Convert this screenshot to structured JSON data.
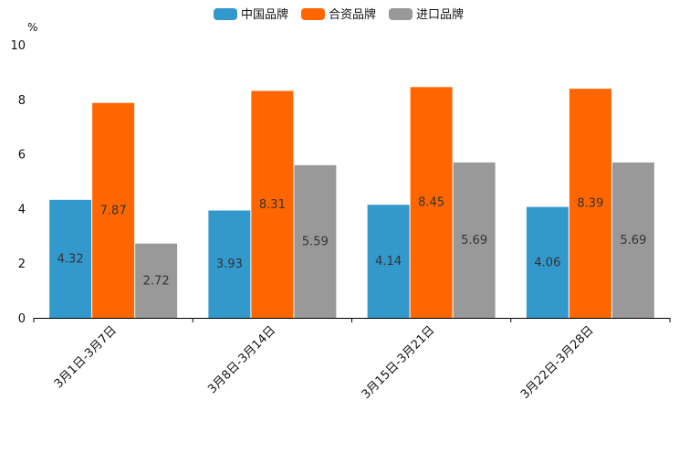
{
  "chart_data": {
    "type": "bar",
    "ylabel": "%",
    "ylim": [
      0,
      10
    ],
    "yticks": [
      "0",
      "2",
      "4",
      "6",
      "8",
      "10"
    ],
    "categories": [
      "3月1日-3月7日",
      "3月8日-3月14日",
      "3月15日-3月21日",
      "3月22日-3月28日"
    ],
    "legend_position": "top-center",
    "series": [
      {
        "name": "中国品牌",
        "color": "#3399cc",
        "values": [
          4.32,
          3.93,
          4.14,
          4.06
        ],
        "labels": [
          "4.32",
          "3.93",
          "4.14",
          "4.06"
        ]
      },
      {
        "name": "合资品牌",
        "color": "#ff6600",
        "values": [
          7.87,
          8.31,
          8.45,
          8.39
        ],
        "labels": [
          "7.87",
          "8.31",
          "8.45",
          "8.39"
        ]
      },
      {
        "name": "进口品牌",
        "color": "#999999",
        "values": [
          2.72,
          5.59,
          5.69,
          5.69
        ],
        "labels": [
          "2.72",
          "5.59",
          "5.69",
          "5.69"
        ]
      }
    ]
  }
}
